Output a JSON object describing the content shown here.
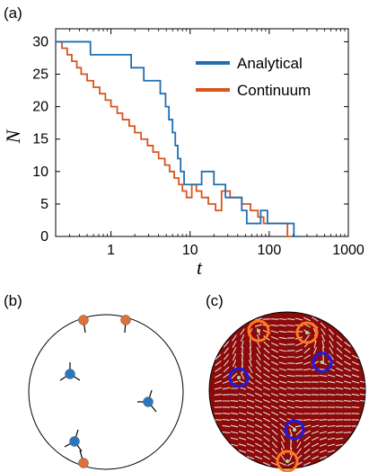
{
  "figure": {
    "panel_labels": [
      "(a)",
      "(b)",
      "(c)"
    ]
  },
  "chart_data": {
    "type": "line",
    "xlabel": "t",
    "ylabel": "N",
    "xscale": "log",
    "xlim": [
      0.2,
      1000
    ],
    "ylim": [
      0,
      32
    ],
    "xticks": [
      1,
      10,
      100,
      1000
    ],
    "xtick_labels": [
      "1",
      "10",
      "100",
      "1000"
    ],
    "yticks": [
      0,
      5,
      10,
      15,
      20,
      25,
      30
    ],
    "ytick_labels": [
      "0",
      "5",
      "10",
      "15",
      "20",
      "25",
      "30"
    ],
    "grid": false,
    "legend_position": "top-right",
    "series": [
      {
        "name": "Analytical",
        "color": "#1f6fb4",
        "step": true,
        "x": [
          0.2,
          0.55,
          1.8,
          2.6,
          4.2,
          4.9,
          5.4,
          6.0,
          6.5,
          7.0,
          7.6,
          8.4,
          14,
          20,
          28,
          45,
          52,
          78,
          95,
          205,
          245
        ],
        "y": [
          30,
          28,
          26,
          24,
          22,
          20,
          18,
          16,
          14,
          12,
          10,
          8,
          10,
          8,
          6,
          4,
          2,
          4,
          2,
          0,
          0
        ]
      },
      {
        "name": "Continuum",
        "color": "#d9541e",
        "step": true,
        "x": [
          0.2,
          0.24,
          0.28,
          0.32,
          0.37,
          0.42,
          0.5,
          0.6,
          0.72,
          0.85,
          1.0,
          1.2,
          1.4,
          1.7,
          2.0,
          2.4,
          2.9,
          3.4,
          4.0,
          4.8,
          5.5,
          6.3,
          7.2,
          8.0,
          9.0,
          10.5,
          12,
          14,
          17,
          21,
          25,
          32,
          45,
          58,
          72,
          85,
          95,
          170,
          190
        ],
        "y": [
          30,
          29,
          28,
          27,
          26,
          25,
          24,
          23,
          22,
          21,
          20,
          19,
          18,
          17,
          16,
          15,
          14,
          13,
          12,
          11,
          10,
          9,
          8,
          7,
          6,
          8,
          7,
          6,
          5,
          4,
          7,
          6,
          5,
          4,
          3,
          2,
          2,
          0,
          0
        ]
      }
    ]
  },
  "panel_b": {
    "orange_color": "#e0703a",
    "blue_color": "#2a77c0"
  },
  "panel_c": {
    "disk_color": "#8b0a0a",
    "orange_ring_color": "#ff7a1a",
    "blue_ring_color": "#1c1ce0"
  }
}
